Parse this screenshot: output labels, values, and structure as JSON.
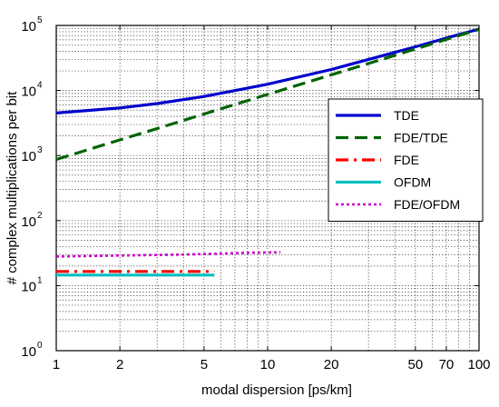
{
  "chart_data": {
    "type": "line",
    "xlabel": "modal dispersion [ps/km]",
    "ylabel": "# complex multiplications per bit",
    "x_scale": "log",
    "y_scale": "log",
    "xlim": [
      1,
      100
    ],
    "ylim": [
      1,
      100000
    ],
    "grid": true,
    "legend_position": "right",
    "x_ticks": [
      {
        "value": 1,
        "label": "1"
      },
      {
        "value": 2,
        "label": "2"
      },
      {
        "value": 5,
        "label": "5"
      },
      {
        "value": 10,
        "label": "10"
      },
      {
        "value": 20,
        "label": "20"
      },
      {
        "value": 50,
        "label": "50"
      },
      {
        "value": 70,
        "label": "70"
      },
      {
        "value": 100,
        "label": "100"
      }
    ],
    "y_ticks": [
      {
        "value": 1,
        "base": "10",
        "exp": "0"
      },
      {
        "value": 10,
        "base": "10",
        "exp": "1"
      },
      {
        "value": 100,
        "base": "10",
        "exp": "2"
      },
      {
        "value": 1000,
        "base": "10",
        "exp": "3"
      },
      {
        "value": 10000,
        "base": "10",
        "exp": "4"
      },
      {
        "value": 100000,
        "base": "10",
        "exp": "5"
      }
    ],
    "series": [
      {
        "name": "TDE",
        "color": "#0000cc",
        "style": "solid",
        "x": [
          1,
          2,
          3,
          5,
          10,
          20,
          30,
          50,
          70,
          100
        ],
        "y": [
          4500,
          5400,
          6300,
          8100,
          12500,
          21000,
          30000,
          47000,
          64000,
          88000
        ]
      },
      {
        "name": "FDE/TDE",
        "color": "#006400",
        "style": "dashed",
        "x": [
          1,
          2,
          3,
          5,
          10,
          20,
          30,
          50,
          70,
          100
        ],
        "y": [
          870,
          1740,
          2600,
          4350,
          8700,
          17400,
          26000,
          43500,
          61000,
          87000
        ]
      },
      {
        "name": "FDE",
        "color": "#ff0000",
        "style": "dashdot",
        "x": [
          1,
          2,
          3,
          4,
          5.6
        ],
        "y": [
          16.5,
          16.5,
          16.5,
          16.5,
          16.5
        ]
      },
      {
        "name": "OFDM",
        "color": "#00bfbf",
        "style": "solid",
        "x": [
          1,
          2,
          3,
          4,
          5.6
        ],
        "y": [
          14.5,
          14.5,
          14.5,
          14.5,
          14.5
        ]
      },
      {
        "name": "FDE/OFDM",
        "color": "#cc00cc",
        "style": "dotted",
        "x": [
          1,
          2,
          4,
          6,
          8,
          11.5
        ],
        "y": [
          28,
          29,
          30,
          31,
          32,
          32.5
        ]
      }
    ]
  }
}
